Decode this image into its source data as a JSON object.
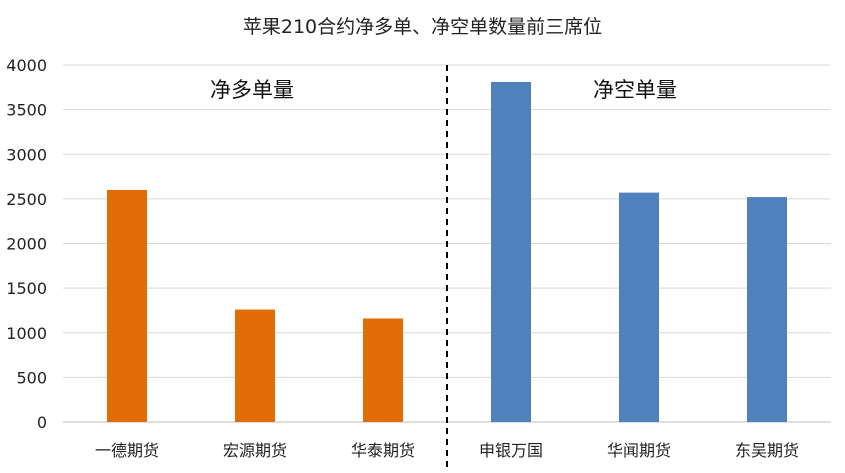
{
  "chart_data": {
    "type": "bar",
    "title": "苹果210合约净多单、净空单数量前三席位",
    "xlabel": "",
    "ylabel": "",
    "ylim": [
      0,
      4000
    ],
    "yticks": [
      0,
      500,
      1000,
      1500,
      2000,
      2500,
      3000,
      3500,
      4000
    ],
    "grid": true,
    "categories": [
      "一德期货",
      "宏源期货",
      "华泰期货",
      "申银万国",
      "华闻期货",
      "东吴期货"
    ],
    "values": [
      2600,
      1260,
      1160,
      3810,
      2570,
      2520
    ],
    "groups": [
      {
        "label": "净多单量",
        "categories": [
          "一德期货",
          "宏源期货",
          "华泰期货"
        ],
        "color": "#E36C09"
      },
      {
        "label": "净空单量",
        "categories": [
          "申银万国",
          "华闻期货",
          "东吴期货"
        ],
        "color": "#4F81BD"
      }
    ],
    "divider": "dashed line between 华泰期货 and 申银万国"
  },
  "colors": {
    "long": "#E36C09",
    "short": "#4F81BD",
    "grid": "#D9D9D9",
    "axis": "#BFBFBF",
    "text": "#222222"
  }
}
